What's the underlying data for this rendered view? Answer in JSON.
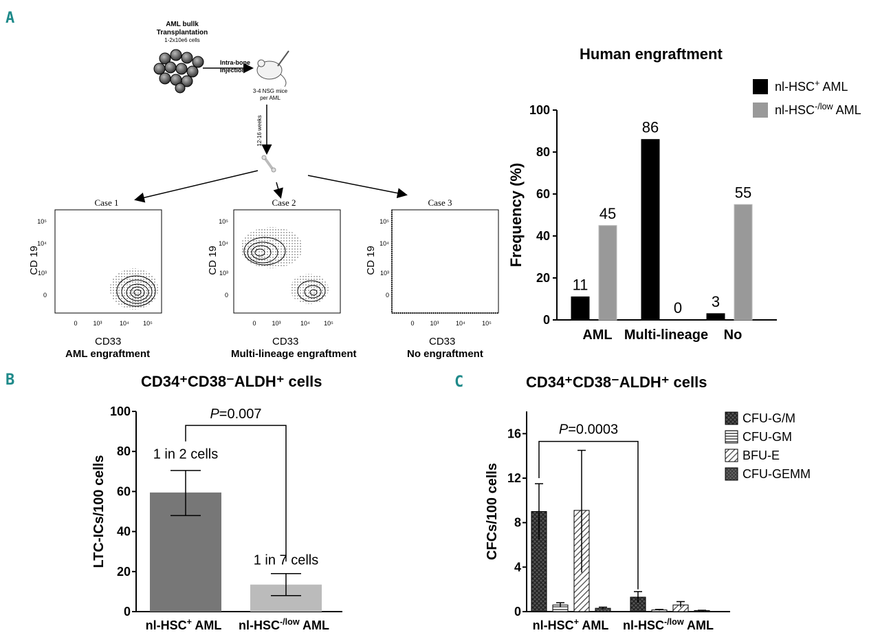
{
  "panels": {
    "a": "A",
    "b": "B",
    "c": "C"
  },
  "schematic": {
    "transplant_title_1": "AML bullk",
    "transplant_title_2": "Transplantation",
    "cells": "1-2x10e6 cells",
    "injection_1": "Intra-bone",
    "injection_2": "Injection",
    "mice_1": "3-4 NSG mice",
    "mice_2": "per AML",
    "weeks": "12-16 weeks"
  },
  "flow_plots": [
    {
      "title": "Case 1",
      "xlabel": "CD33",
      "ylabel": "CD 19",
      "caption": "AML engraftment",
      "yticks": [
        "10⁵",
        "10⁴",
        "10³",
        "0"
      ],
      "xticks": [
        "0",
        "10³",
        "10⁴",
        "10⁵"
      ]
    },
    {
      "title": "Case 2",
      "xlabel": "CD33",
      "ylabel": "CD 19",
      "caption": "Multi-lineage engraftment",
      "yticks": [
        "10⁵",
        "10⁴",
        "10³",
        "0"
      ],
      "xticks": [
        "0",
        "10³",
        "10⁴",
        "10⁵"
      ]
    },
    {
      "title": "Case 3",
      "xlabel": "CD33",
      "ylabel": "CD 19",
      "caption": "No engraftment",
      "yticks": [
        "10⁵",
        "10⁴",
        "10³",
        "0"
      ],
      "xticks": [
        "0",
        "10³",
        "10⁴",
        "10⁵"
      ]
    }
  ],
  "chart_data": [
    {
      "type": "bar",
      "title": "Human engraftment",
      "ylabel": "Frequency (%)",
      "ylim": [
        0,
        100
      ],
      "yticks": [
        0,
        20,
        40,
        60,
        80,
        100
      ],
      "categories": [
        "AML",
        "Multi-lineage",
        "No"
      ],
      "legend_position": "top-right",
      "series": [
        {
          "name": "nl-HSC⁺ AML",
          "color": "#000000",
          "values": [
            11,
            86,
            3
          ]
        },
        {
          "name": "nl-HSC⁻/low AML",
          "color": "#999999",
          "values": [
            45,
            0,
            55
          ]
        }
      ],
      "data_labels": [
        "11",
        "86",
        "3",
        "45",
        "0",
        "55"
      ]
    },
    {
      "type": "bar",
      "title": "CD34⁺CD38⁻ALDH⁺ cells",
      "ylabel": "LTC-ICs/100 cells",
      "ylim": [
        0,
        100
      ],
      "yticks": [
        0,
        20,
        40,
        60,
        80,
        100
      ],
      "categories": [
        "nl-HSC⁺ AML",
        "nl-HSC⁻/low AML"
      ],
      "values": [
        59.5,
        13.5
      ],
      "errors": [
        [
          48,
          70.5
        ],
        [
          8,
          19
        ]
      ],
      "colors": [
        "#777777",
        "#bbbbbb"
      ],
      "annotations": [
        "1 in 2 cells",
        "1 in 7 cells"
      ],
      "p_value": "P=0.007"
    },
    {
      "type": "bar",
      "title": "CD34⁺CD38⁻ALDH⁺ cells",
      "ylabel": "CFCs/100 cells",
      "ylim": [
        0,
        18
      ],
      "yticks": [
        0,
        4,
        8,
        12,
        16
      ],
      "categories": [
        "nl-HSC⁺ AML",
        "nl-HSC⁻/low AML"
      ],
      "legend_position": "top-right",
      "series": [
        {
          "name": "CFU-G/M",
          "values": [
            9.0,
            1.3
          ],
          "errors": [
            [
              6.5,
              11.5
            ],
            [
              0.8,
              1.8
            ]
          ]
        },
        {
          "name": "CFU-GM",
          "values": [
            0.6,
            0.15
          ],
          "errors": [
            [
              0.4,
              0.8
            ],
            [
              0.1,
              0.2
            ]
          ]
        },
        {
          "name": "BFU-E",
          "values": [
            9.1,
            0.6
          ],
          "errors": [
            [
              3.5,
              14.5
            ],
            [
              0.4,
              0.9
            ]
          ]
        },
        {
          "name": "CFU-GEMM",
          "values": [
            0.3,
            0.1
          ],
          "errors": [
            [
              0.2,
              0.4
            ],
            [
              0.05,
              0.12
            ]
          ]
        }
      ],
      "p_value": "P=0.0003"
    }
  ]
}
